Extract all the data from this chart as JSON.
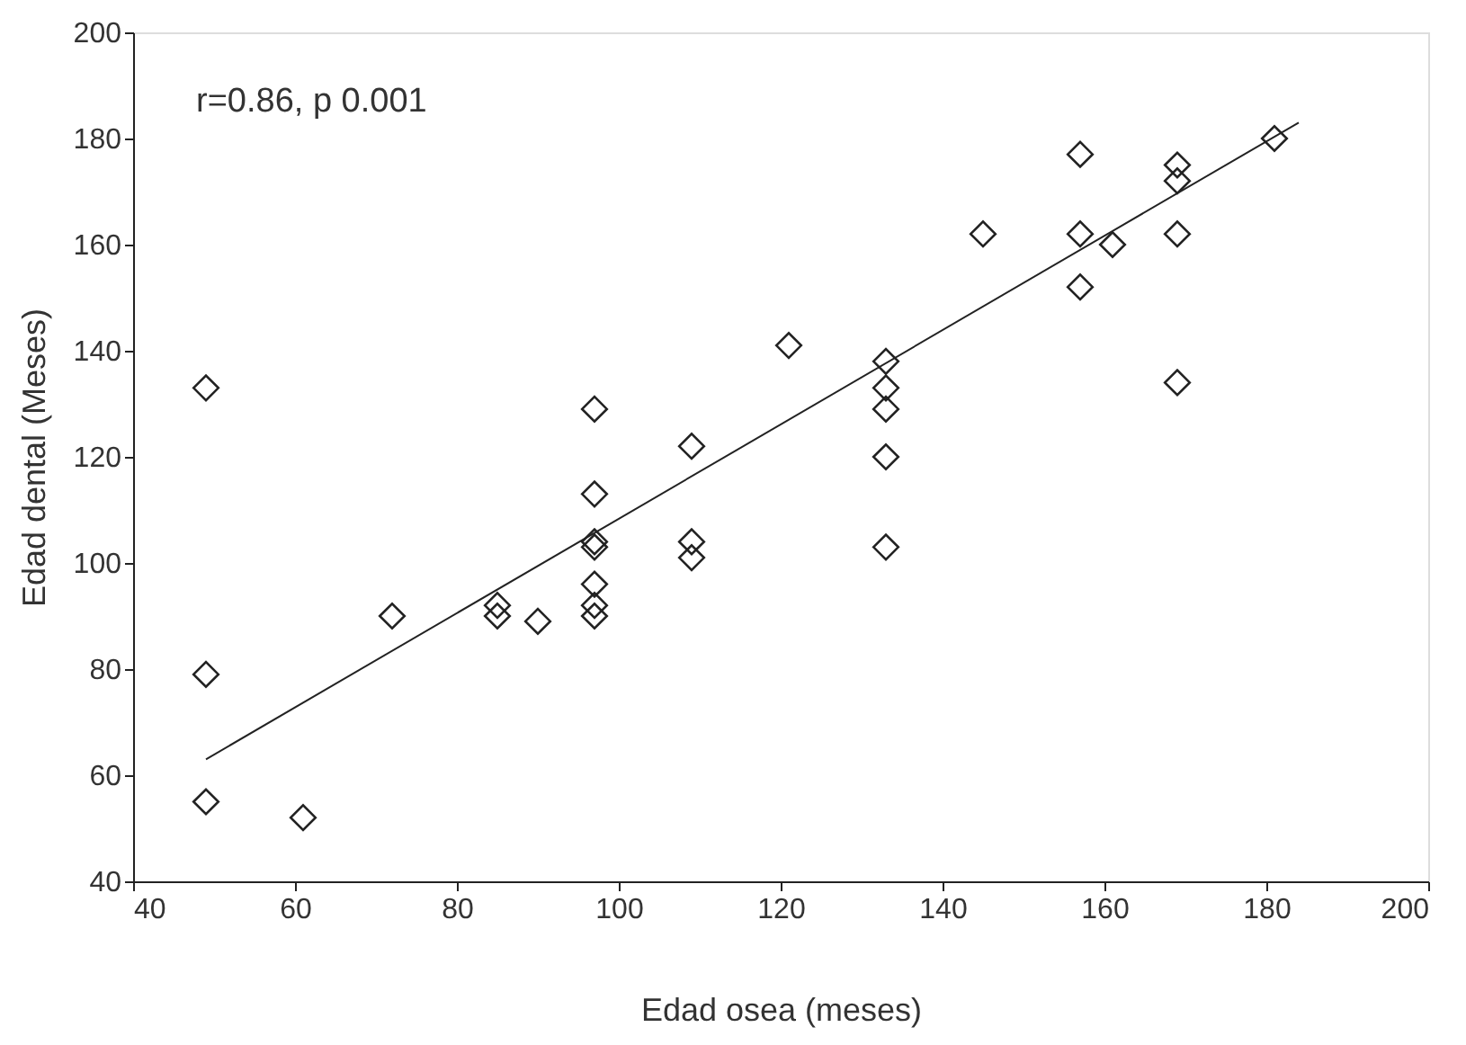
{
  "chart_data": {
    "type": "scatter",
    "xlabel": "Edad osea (meses)",
    "ylabel": "Edad dental (Meses)",
    "xlim": [
      40,
      200
    ],
    "ylim": [
      40,
      200
    ],
    "xticks": [
      40,
      60,
      80,
      100,
      120,
      140,
      160,
      180,
      200
    ],
    "yticks": [
      40,
      60,
      80,
      100,
      120,
      140,
      160,
      180,
      200
    ],
    "grid": false,
    "annotations": [
      "r=0.86, p 0.001"
    ],
    "series": [
      {
        "color": "#222222",
        "marker": "diamond",
        "x": [
          49,
          49,
          49,
          61,
          72,
          85,
          85,
          90,
          97,
          97,
          97,
          97,
          97,
          97,
          97,
          109,
          109,
          109,
          121,
          133,
          133,
          133,
          133,
          133,
          145,
          157,
          157,
          157,
          161,
          169,
          169,
          169,
          169,
          181
        ],
        "values": [
          133,
          79,
          55,
          52,
          90,
          92,
          90,
          89,
          129,
          113,
          104,
          103,
          96,
          92,
          90,
          122,
          104,
          101,
          141,
          138,
          133,
          129,
          120,
          103,
          162,
          177,
          162,
          152,
          160,
          175,
          172,
          162,
          134,
          180
        ]
      },
      {
        "type": "line",
        "marker": "none",
        "color": "#222222",
        "x": [
          49,
          184
        ],
        "values": [
          63,
          183
        ]
      }
    ]
  }
}
